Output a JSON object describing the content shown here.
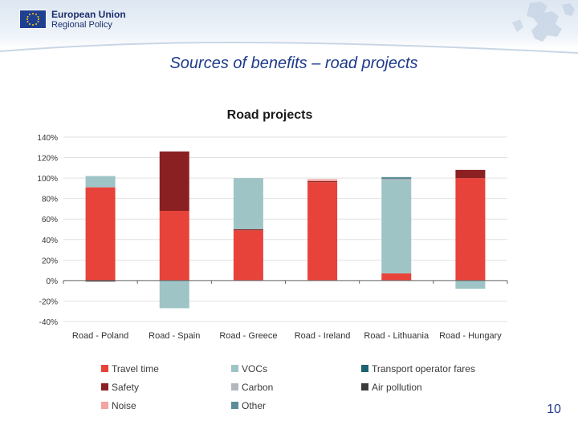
{
  "header": {
    "brand_line1": "European Union",
    "brand_line2": "Regional Policy"
  },
  "slide_title": "Sources of benefits – road projects",
  "page_number": "10",
  "colors": {
    "Travel time": "#e8433a",
    "Safety": "#8b2023",
    "Noise": "#f4a4a1",
    "VOCs": "#9ec4c6",
    "Carbon": "#b3b8be",
    "Other": "#5b8e96",
    "Transport operator fares": "#1d6272",
    "Air pollution": "#3a3a3a"
  },
  "chart_data": {
    "type": "bar",
    "stacked": true,
    "title": "Road projects",
    "categories": [
      "Road - Poland",
      "Road - Spain",
      "Road - Greece",
      "Road - Ireland",
      "Road - Lithuania",
      "Road - Hungary"
    ],
    "ylim": [
      -40,
      140
    ],
    "yticks": [
      140,
      120,
      100,
      80,
      60,
      40,
      20,
      0,
      -20,
      -40
    ],
    "ytick_labels": [
      "140%",
      "120%",
      "100%",
      "80%",
      "60%",
      "40%",
      "20%",
      "0%",
      "-20%",
      "-40%"
    ],
    "series": [
      {
        "name": "Travel time",
        "values": [
          91,
          68,
          49,
          96,
          7,
          100
        ]
      },
      {
        "name": "Safety",
        "values": [
          0,
          58,
          1,
          1,
          0,
          8
        ]
      },
      {
        "name": "Noise",
        "values": [
          0,
          0,
          0,
          2,
          0,
          0
        ]
      },
      {
        "name": "VOCs",
        "values": [
          11,
          -27,
          50,
          0,
          91,
          -8
        ]
      },
      {
        "name": "Carbon",
        "values": [
          0,
          0,
          0,
          0,
          1,
          0
        ]
      },
      {
        "name": "Other",
        "values": [
          0,
          0,
          0,
          0,
          2,
          0
        ]
      },
      {
        "name": "Transport operator fares",
        "values": [
          0,
          0,
          0,
          0,
          0,
          0
        ]
      },
      {
        "name": "Air pollution",
        "values": [
          -1,
          0,
          0,
          0,
          0,
          0
        ]
      }
    ],
    "legend": {
      "placement": "bottom",
      "items": [
        "Travel time",
        "VOCs",
        "Transport operator fares",
        "Safety",
        "Carbon",
        "Air pollution",
        "Noise",
        "Other"
      ]
    }
  }
}
